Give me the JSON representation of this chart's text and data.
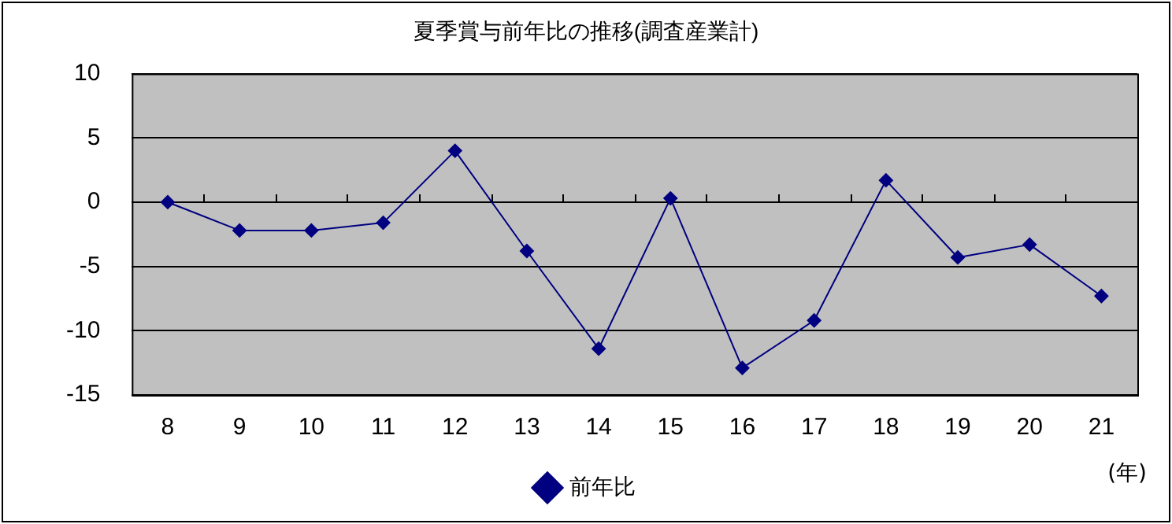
{
  "chart_data": {
    "type": "line",
    "title": "夏季賞与前年比の推移(調査産業計)",
    "categories": [
      "8",
      "9",
      "10",
      "11",
      "12",
      "13",
      "14",
      "15",
      "16",
      "17",
      "18",
      "19",
      "20",
      "21"
    ],
    "series": [
      {
        "name": "前年比",
        "color": "#000080",
        "values": [
          0,
          -2.2,
          -2.2,
          -1.6,
          4.0,
          -3.8,
          -11.4,
          0.3,
          -12.9,
          -9.2,
          1.7,
          -4.3,
          -3.3,
          -7.3
        ]
      }
    ],
    "ylim": [
      -15,
      10
    ],
    "yticks": [
      -15,
      -10,
      -5,
      0,
      5,
      10
    ],
    "grid": "y",
    "legend": "bottom",
    "marker": "diamond",
    "line_style": "solid",
    "annotations": [
      "(年)"
    ]
  }
}
